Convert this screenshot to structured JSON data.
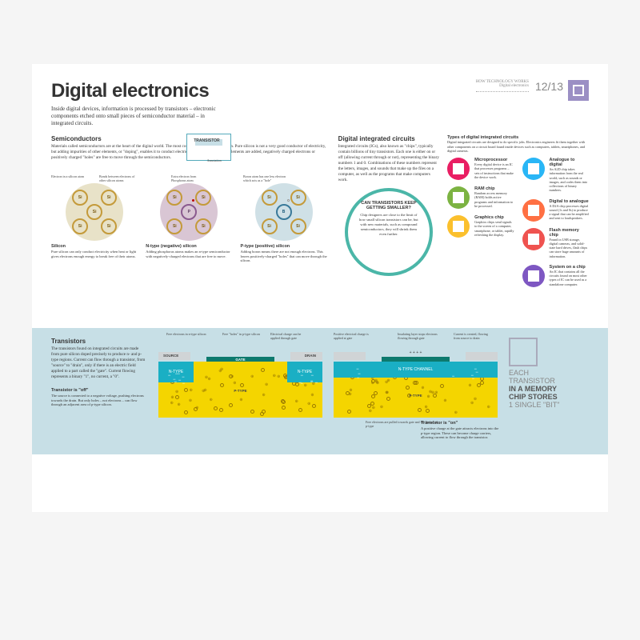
{
  "header": {
    "title": "Digital electronics",
    "breadcrumb_top": "HOW TECHNOLOGY WORKS",
    "breadcrumb_sub": "Digital electronics",
    "page_no": "12/13",
    "intro": "Inside digital devices, information is processed by transistors – electronic components etched onto small pieces of semiconductor material – in integrated circuits."
  },
  "semiconductors": {
    "heading": "Semiconductors",
    "body": "Materials called semiconductors are at the heart of the digital world. The most common is the element silicon. Pure silicon is not a very good conductor of electricity, but adding impurities of other elements, or \"doping\", enables it to conduct electricity. Depending on which elements are added, negatively charged electrons or positively charged \"holes\" are free to move through the semiconductors.",
    "transistor_label": "TRANSISTOR",
    "annotation_label": "Annotation",
    "ann1": "Electron in a silicon atom",
    "ann2": "Bonds between electrons of other silicon atoms",
    "ann3": "Extra electron from Phosphorus atom",
    "ann4": "Boron atom has one less electron which acts as a \"hole\"",
    "atoms": {
      "si": "Si",
      "p": "P",
      "b": "B"
    },
    "circles": [
      {
        "bg": "#e8e2c8",
        "title": "Silicon",
        "caption": "Pure silicon can only conduct electricity when heat or light gives electrons enough energy to break free of their atoms.",
        "center": "Si",
        "center_col": "#c49a3a",
        "ann_left": "Silicon atom"
      },
      {
        "bg": "#d9c6d4",
        "title": "N-type (negative) silicon",
        "caption": "Adding phosphorus atoms makes an n-type semiconductor with negatively-charged electrons that are free to move.",
        "center": "P",
        "center_col": "#8a5a8f",
        "ann_left": "Silicon atom",
        "ann_right": "Phosphorus atom"
      },
      {
        "bg": "#cfe0e6",
        "title": "P-type (positive) silicon",
        "caption": "Adding boron means there are not enough electrons. This leaves positively-charged \"holes\" that can move through the silicon.",
        "center": "B",
        "center_col": "#3a7a9a",
        "ann_left": "Silicon atom",
        "ann_right": "Boron atom"
      }
    ]
  },
  "dic": {
    "heading": "Digital integrated circuits",
    "body": "Integrated circuits (ICs), also known as \"chips\", typically contain billions of tiny transistors. Each one is either on or off (allowing current through or not), representing the binary numbers 1 and 0. Combinations of these numbers represent the letters, images, and sounds that make up the files on a computer, as well as the programs that make computers work.",
    "types_heading": "Types of digital integrated circuits",
    "types_body": "Digital integrated circuits are designed to do specific jobs. Electronics engineers fit them together with other components on a circuit board found inside devices such as computers, tablets, smartphones, and digital cameras.",
    "chips_left": [
      {
        "color": "#e91e63",
        "title": "Microprocessor",
        "text": "Every digital device is an IC that processes programs – sets of instructions that make the device work."
      },
      {
        "color": "#7cb342",
        "title": "RAM chip",
        "text": "Random access memory (RAM) holds active programs and information to be processed."
      },
      {
        "color": "#fbc02d",
        "title": "Graphics chip",
        "text": "Graphics chips send signals to the screen of a computer, smartphone, or tablet, rapidly refreshing the display."
      }
    ],
    "chips_right": [
      {
        "color": "#29b6f6",
        "title": "Analogue to digital",
        "text": "An A2D chip takes information from the real world, such as sounds or images, and codes them into collections of binary numbers."
      },
      {
        "color": "#ff7043",
        "title": "Digital to analogue",
        "text": "A D2A chip processes digital sound (1s and 0s) to produce a signal that can be amplified and sent to loudspeakers."
      },
      {
        "color": "#ef5350",
        "title": "Flash memory chip",
        "text": "Found in USB storage, digital cameras, and solid-state hard drives, flash chips can store huge amounts of information."
      },
      {
        "color": "#7e57c2",
        "title": "System on a chip",
        "text": "An IC that contains all the circuits found on most other types of IC can be used as a standalone computer."
      }
    ]
  },
  "callout": {
    "heading": "CAN TRANSISTORS KEEP GETTING SMALLER?",
    "body": "Chip designers are close to the limit of how small silicon transistors can be, but with new materials, such as compound semiconductors, they will shrink them even further."
  },
  "transistors": {
    "heading": "Transistors",
    "body": "The transistors found on integrated circuits are made from pure silicon doped precisely to produce n- and p-type regions. Current can flow through a transistor, from \"source\" to \"drain\", only if there is an electric field applied to a part called the \"gate\". Current flowing represents a binary \"1\", no current, a \"0\".",
    "source": "SOURCE",
    "gate": "GATE",
    "drain": "DRAIN",
    "ptype": "P-TYPE",
    "ntype": "N-TYPE",
    "nchannel": "N-TYPE CHANNEL",
    "ann_a": "Free electrons in n-type silicon",
    "ann_b": "Free \"holes\" in p-type silicon",
    "ann_c": "Electrical charge can be applied through gate",
    "ann_d": "Positive electrical charge is applied at gate",
    "ann_e": "Insulating layer stops electrons flowing through gate",
    "ann_f": "Current is created, flowing from source to drain",
    "ann_g": "Free electrons are pulled towards gate and fill \"holes\" in p-type",
    "off_title": "Transistor is \"off\"",
    "off_body": "The source is connected to a negative voltage, pushing electrons towards the drain. But only holes – not electrons – can flow through an adjacent area of p-type silicon.",
    "on_title": "Transistor is \"on\"",
    "on_body": "A positive charge at the gate attracts electrons into the p-type region. These can become charge carriers, allowing current to flow through the transistor.",
    "fact_l1": "EACH",
    "fact_l2": "TRANSISTOR",
    "fact_l3": "IN A MEMORY",
    "fact_l4": "CHIP STORES",
    "fact_l5": "1 SINGLE \"BIT\""
  },
  "colors": {
    "teal": "#4bb6a8",
    "yellow": "#f4d500",
    "cyan": "#1aafc4",
    "band": "#c7dfe6",
    "purple": "#9b8fc4"
  }
}
